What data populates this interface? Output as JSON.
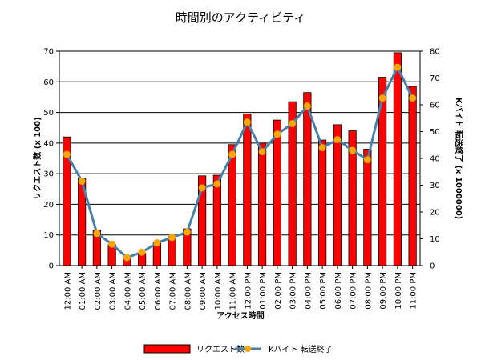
{
  "chart_data": {
    "type": "bar",
    "title": "時間別のアクティビティ",
    "xlabel": "アクセス時間",
    "ylabel": "リクエスト数 (x 100)",
    "y2label": "Kバイト 転送終了 (x 1000000)",
    "ylim": [
      0,
      70
    ],
    "y2lim": [
      0,
      80
    ],
    "yticks": [
      0,
      10,
      20,
      30,
      40,
      50,
      60,
      70
    ],
    "y2ticks": [
      0,
      10,
      20,
      30,
      40,
      50,
      60,
      70,
      80
    ],
    "grid": true,
    "legend_placement": "bottom",
    "categories": [
      "12:00 AM",
      "01:00 AM",
      "02:00 AM",
      "03:00 AM",
      "04:00 AM",
      "05:00 AM",
      "06:00 AM",
      "07:00 AM",
      "08:00 AM",
      "09:00 AM",
      "10:00 AM",
      "11:00 AM",
      "12:00 PM",
      "01:00 PM",
      "02:00 PM",
      "03:00 PM",
      "04:00 PM",
      "05:00 PM",
      "06:00 PM",
      "07:00 PM",
      "08:00 PM",
      "09:00 PM",
      "10:00 PM",
      "11:00 PM"
    ],
    "series": [
      {
        "name": "リクエスト数",
        "type": "bar",
        "axis": "left",
        "color": "#ff0000",
        "values": [
          42,
          28.5,
          11.5,
          6.8,
          2.5,
          4,
          7.5,
          9.5,
          12,
          29.3,
          29.5,
          39.5,
          49.5,
          40,
          47.5,
          53.5,
          56.5,
          41,
          46,
          44,
          38,
          61.5,
          69.5,
          58.5
        ]
      },
      {
        "name": "Kバイト 転送終了",
        "type": "line",
        "axis": "right",
        "color": "#4a7fa8",
        "marker_color": "#ffa500",
        "values": [
          41.5,
          31.5,
          12,
          8,
          3,
          5,
          8.5,
          10.5,
          12.5,
          29,
          30.5,
          41.5,
          53.5,
          42.5,
          49,
          53,
          59.5,
          44,
          47,
          43,
          39.5,
          62.5,
          74,
          62.5
        ]
      }
    ]
  }
}
